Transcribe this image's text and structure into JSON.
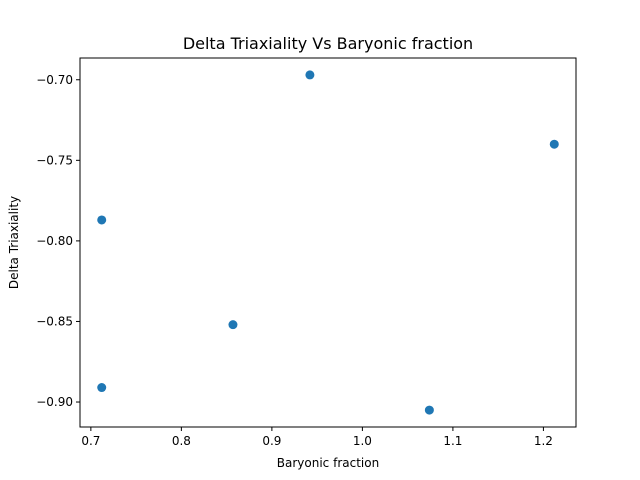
{
  "chart_data": {
    "type": "scatter",
    "title": "Delta Triaxiality Vs Baryonic fraction",
    "xlabel": "Baryonic fraction",
    "ylabel": "Delta Triaxiality",
    "xlim": [
      0.688,
      1.236
    ],
    "ylim": [
      -0.9155,
      -0.6865
    ],
    "xticks": [
      0.7,
      0.8,
      0.9,
      1.0,
      1.1,
      1.2
    ],
    "xtick_labels": [
      "0.7",
      "0.8",
      "0.9",
      "1.0",
      "1.1",
      "1.2"
    ],
    "yticks": [
      -0.7,
      -0.75,
      -0.8,
      -0.85,
      -0.9
    ],
    "ytick_labels": [
      "−0.70",
      "−0.75",
      "−0.80",
      "−0.85",
      "−0.90"
    ],
    "series": [
      {
        "color": "#1f77b4",
        "x": [
          0.712,
          0.712,
          0.857,
          0.942,
          1.074,
          1.212
        ],
        "y": [
          -0.787,
          -0.891,
          -0.852,
          -0.697,
          -0.905,
          -0.74
        ]
      }
    ],
    "grid": false
  }
}
